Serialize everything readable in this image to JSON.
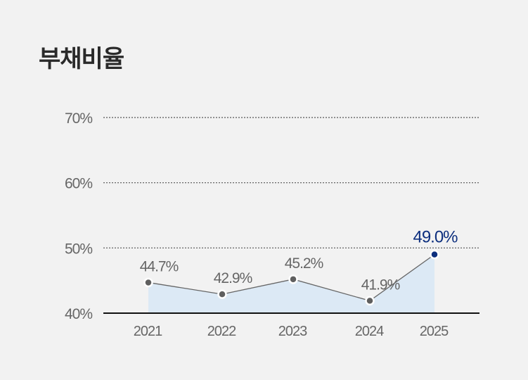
{
  "chart_data": {
    "type": "line",
    "title": "부채비율",
    "categories": [
      "2021",
      "2022",
      "2023",
      "2024",
      "2025"
    ],
    "values": [
      44.7,
      42.9,
      45.2,
      41.9,
      49.0
    ],
    "value_labels": [
      "44.7%",
      "42.9%",
      "45.2%",
      "41.9%",
      "49.0%"
    ],
    "yticks": [
      40,
      50,
      60,
      70
    ],
    "ytick_labels": [
      "40%",
      "50%",
      "60%",
      "70%"
    ],
    "ylim": [
      40,
      70
    ],
    "grid": true,
    "xlabel": "",
    "ylabel": "",
    "colors": {
      "line": "#666666",
      "point": "#5f5f5f",
      "highlight": "#0d2f7e",
      "area": "#dce9f5",
      "grid": "#555555",
      "text": "#666666"
    }
  }
}
